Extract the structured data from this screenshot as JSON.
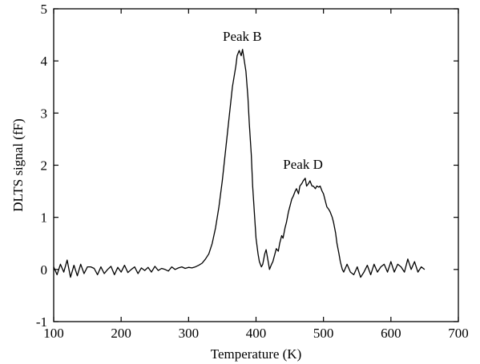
{
  "chart_data": {
    "type": "line",
    "title": "",
    "xlabel": "Temperature (K)",
    "ylabel": "DLTS signal (fF)",
    "xlim": [
      100,
      700
    ],
    "ylim": [
      -1,
      5
    ],
    "xticks": [
      "100",
      "200",
      "300",
      "400",
      "500",
      "600",
      "700"
    ],
    "yticks": [
      "-1",
      "0",
      "1",
      "2",
      "3",
      "4",
      "5"
    ],
    "grid": false,
    "legend": "none",
    "line_color": "#000000",
    "annotations": [
      {
        "text": "Peak B",
        "x": 382,
        "y": 4.2
      },
      {
        "text": "Peak D",
        "x": 472,
        "y": 1.75
      }
    ],
    "series": [
      {
        "x": [
          100,
          105,
          110,
          115,
          120,
          125,
          130,
          135,
          140,
          145,
          150,
          155,
          160,
          165,
          170,
          175,
          180,
          185,
          190,
          195,
          200,
          205,
          210,
          215,
          220,
          225,
          230,
          235,
          240,
          245,
          250,
          255,
          260,
          265,
          270,
          275,
          280,
          285,
          290,
          295,
          300,
          305,
          310,
          315,
          320,
          325,
          330,
          335,
          340,
          345,
          350,
          355,
          360,
          365,
          370,
          372,
          375,
          378,
          380,
          382,
          385,
          388,
          390,
          393,
          395,
          398,
          400,
          403,
          405,
          408,
          410,
          413,
          415,
          418,
          420,
          423,
          425,
          428,
          430,
          433,
          435,
          438,
          440,
          443,
          445,
          448,
          450,
          453,
          455,
          458,
          460,
          463,
          465,
          468,
          470,
          473,
          475,
          478,
          480,
          483,
          485,
          488,
          490,
          493,
          495,
          498,
          500,
          503,
          505,
          508,
          510,
          513,
          515,
          518,
          520,
          523,
          525,
          528,
          530,
          535,
          540,
          545,
          550,
          555,
          560,
          565,
          570,
          575,
          580,
          585,
          590,
          595,
          600,
          605,
          610,
          615,
          620,
          625,
          630,
          635,
          640,
          645,
          650
        ],
        "y": [
          0.05,
          -0.1,
          0.1,
          -0.05,
          0.18,
          -0.15,
          0.08,
          -0.12,
          0.1,
          -0.08,
          0.05,
          0.05,
          0.02,
          -0.1,
          0.05,
          -0.08,
          0.0,
          0.06,
          -0.1,
          0.04,
          -0.05,
          0.08,
          -0.06,
          0.0,
          0.05,
          -0.08,
          0.03,
          -0.02,
          0.04,
          -0.05,
          0.06,
          -0.02,
          0.02,
          0.0,
          -0.03,
          0.05,
          0.0,
          0.03,
          0.05,
          0.02,
          0.04,
          0.03,
          0.05,
          0.08,
          0.12,
          0.2,
          0.3,
          0.5,
          0.8,
          1.2,
          1.7,
          2.3,
          2.9,
          3.5,
          3.9,
          4.1,
          4.2,
          4.1,
          4.22,
          4.05,
          3.8,
          3.3,
          2.8,
          2.2,
          1.6,
          1.0,
          0.6,
          0.3,
          0.15,
          0.05,
          0.1,
          0.3,
          0.38,
          0.15,
          0.0,
          0.1,
          0.15,
          0.3,
          0.4,
          0.35,
          0.5,
          0.65,
          0.6,
          0.8,
          0.9,
          1.1,
          1.2,
          1.35,
          1.4,
          1.5,
          1.55,
          1.45,
          1.6,
          1.65,
          1.7,
          1.75,
          1.6,
          1.65,
          1.7,
          1.6,
          1.6,
          1.55,
          1.6,
          1.58,
          1.6,
          1.5,
          1.45,
          1.3,
          1.2,
          1.15,
          1.1,
          1.0,
          0.9,
          0.7,
          0.5,
          0.3,
          0.15,
          0.0,
          -0.05,
          0.1,
          -0.05,
          -0.1,
          0.05,
          -0.15,
          -0.05,
          0.08,
          -0.1,
          0.1,
          -0.05,
          0.05,
          0.1,
          -0.05,
          0.15,
          -0.05,
          0.1,
          0.05,
          -0.05,
          0.2,
          0.0,
          0.15,
          -0.05,
          0.05,
          0.0
        ]
      }
    ]
  }
}
